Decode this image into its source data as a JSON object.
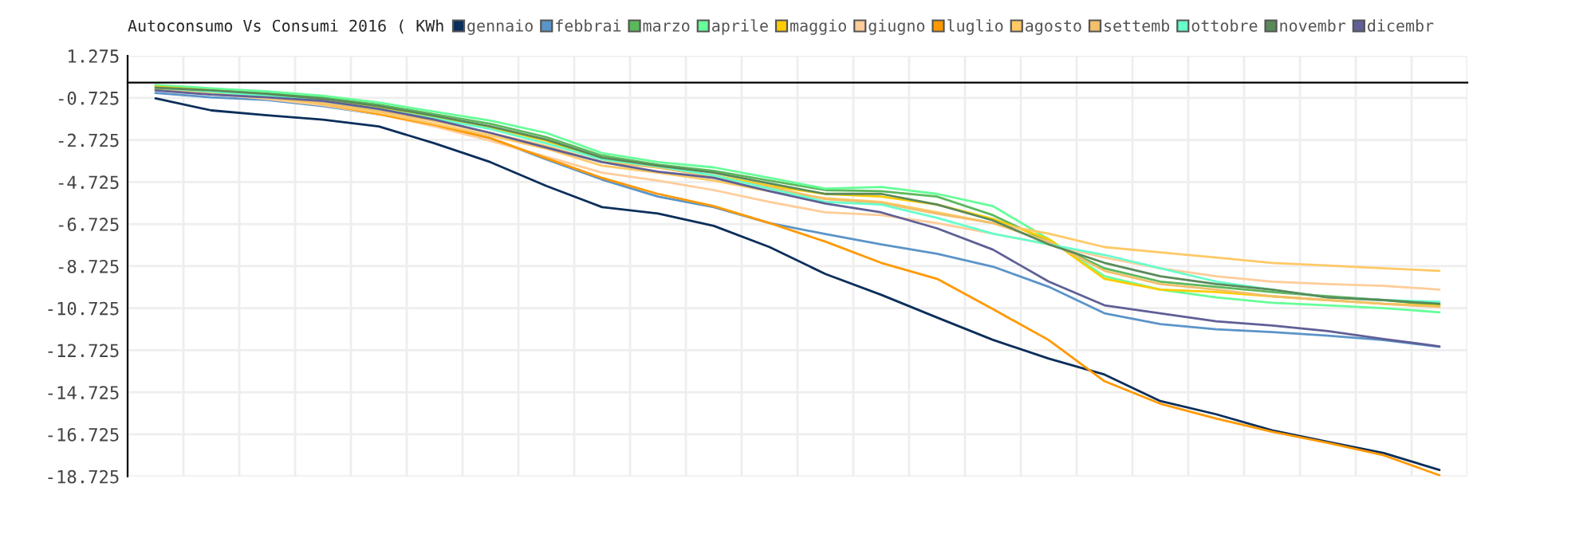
{
  "chart_data": {
    "type": "line",
    "title": "Autoconsumo Vs Consumi 2016 ( KWh",
    "categories": [
      null,
      null,
      null,
      null,
      null,
      null,
      null,
      null,
      null,
      null,
      null,
      null,
      null,
      null,
      null,
      null,
      null,
      null,
      null,
      null,
      null,
      null,
      null,
      null
    ],
    "ylim": [
      -18.725,
      1.275
    ],
    "yticks": [
      1.275,
      -0.725,
      -2.725,
      -4.725,
      -6.725,
      -8.725,
      -10.725,
      -12.725,
      -14.725,
      -16.725,
      -18.725
    ],
    "grid": true,
    "legend": "top",
    "tick_labels": "y",
    "series": [
      {
        "name": "gennaio",
        "color": "#0b2e5a",
        "values": [
          -0.75,
          -1.32,
          -1.55,
          -1.76,
          -2.08,
          -2.89,
          -3.78,
          -4.91,
          -5.92,
          -6.22,
          -6.81,
          -7.82,
          -9.1,
          -10.09,
          -11.17,
          -12.23,
          -13.12,
          -13.88,
          -15.14,
          -15.77,
          -16.53,
          -17.08,
          -17.61,
          -18.42
        ]
      },
      {
        "name": "febbrai",
        "color": "#5b94c8",
        "values": [
          -0.49,
          -0.7,
          -0.82,
          -1.12,
          -1.5,
          -2.01,
          -2.64,
          -3.65,
          -4.61,
          -5.42,
          -5.92,
          -6.68,
          -7.2,
          -7.69,
          -8.14,
          -8.75,
          -9.71,
          -10.97,
          -11.48,
          -11.73,
          -11.86,
          -12.03,
          -12.24,
          -12.56
        ]
      },
      {
        "name": "marzo",
        "color": "#5cb85c",
        "values": [
          -0.16,
          -0.32,
          -0.49,
          -0.7,
          -1.05,
          -1.5,
          -1.96,
          -2.59,
          -3.47,
          -3.9,
          -4.2,
          -4.66,
          -5.11,
          -5.16,
          -5.42,
          -6.3,
          -7.56,
          -8.83,
          -9.46,
          -9.71,
          -9.96,
          -10.16,
          -10.34,
          -10.59
        ]
      },
      {
        "name": "aprile",
        "color": "#66ff99",
        "values": [
          -0.11,
          -0.27,
          -0.42,
          -0.62,
          -0.95,
          -1.38,
          -1.81,
          -2.39,
          -3.35,
          -3.78,
          -4.03,
          -4.53,
          -5.04,
          -4.96,
          -5.29,
          -5.87,
          -7.44,
          -9.21,
          -9.84,
          -10.21,
          -10.47,
          -10.59,
          -10.72,
          -10.92
        ]
      },
      {
        "name": "maggio",
        "color": "#ffcc00",
        "values": [
          -0.19,
          -0.37,
          -0.57,
          -0.82,
          -1.17,
          -1.63,
          -2.13,
          -2.77,
          -3.65,
          -4.03,
          -4.41,
          -4.91,
          -5.29,
          -5.42,
          -5.8,
          -6.48,
          -7.44,
          -9.33,
          -9.84,
          -9.96,
          -10.16,
          -10.34,
          -10.52,
          -10.62
        ]
      },
      {
        "name": "giugno",
        "color": "#ffcc99",
        "values": [
          -0.32,
          -0.54,
          -0.77,
          -1.07,
          -1.5,
          -2.08,
          -2.77,
          -3.52,
          -4.28,
          -4.66,
          -5.11,
          -5.67,
          -6.17,
          -6.3,
          -6.68,
          -7.18,
          -7.69,
          -8.32,
          -8.83,
          -9.21,
          -9.46,
          -9.58,
          -9.66,
          -9.84
        ]
      },
      {
        "name": "luglio",
        "color": "#ff9900",
        "values": [
          -0.32,
          -0.49,
          -0.67,
          -1.0,
          -1.5,
          -2.01,
          -2.64,
          -3.6,
          -4.53,
          -5.29,
          -5.87,
          -6.68,
          -7.56,
          -8.57,
          -9.33,
          -10.77,
          -12.24,
          -14.2,
          -15.27,
          -15.97,
          -16.6,
          -17.13,
          -17.72,
          -18.67
        ]
      },
      {
        "name": "agosto",
        "color": "#ffc966",
        "values": [
          -0.32,
          -0.52,
          -0.72,
          -1.0,
          -1.43,
          -1.96,
          -2.51,
          -3.14,
          -3.95,
          -4.28,
          -4.66,
          -5.16,
          -5.49,
          -5.67,
          -6.17,
          -6.68,
          -7.18,
          -7.82,
          -8.07,
          -8.32,
          -8.57,
          -8.7,
          -8.83,
          -8.95
        ]
      },
      {
        "name": "settemb",
        "color": "#f2bf6b",
        "values": [
          -0.29,
          -0.49,
          -0.67,
          -0.95,
          -1.33,
          -1.83,
          -2.39,
          -3.02,
          -3.78,
          -4.03,
          -4.48,
          -4.96,
          -5.54,
          -5.72,
          -6.23,
          -6.68,
          -7.56,
          -8.95,
          -9.58,
          -9.84,
          -10.16,
          -10.34,
          -10.52,
          -10.67
        ]
      },
      {
        "name": "ottobre",
        "color": "#66ffcc",
        "values": [
          -0.24,
          -0.42,
          -0.62,
          -0.87,
          -1.25,
          -1.7,
          -2.21,
          -2.89,
          -3.65,
          -3.98,
          -4.41,
          -5.04,
          -5.67,
          -5.8,
          -6.43,
          -7.18,
          -7.69,
          -8.19,
          -8.83,
          -9.46,
          -9.84,
          -10.21,
          -10.34,
          -10.42
        ]
      },
      {
        "name": "novembr",
        "color": "#5a8a5a",
        "values": [
          -0.24,
          -0.37,
          -0.54,
          -0.77,
          -1.12,
          -1.58,
          -2.08,
          -2.71,
          -3.57,
          -3.95,
          -4.28,
          -4.79,
          -5.29,
          -5.29,
          -5.8,
          -6.55,
          -7.69,
          -8.57,
          -9.21,
          -9.58,
          -9.84,
          -10.21,
          -10.34,
          -10.52
        ]
      },
      {
        "name": "dicembr",
        "color": "#5f5f96",
        "values": [
          -0.37,
          -0.57,
          -0.7,
          -0.87,
          -1.25,
          -1.76,
          -2.39,
          -3.09,
          -3.78,
          -4.23,
          -4.53,
          -5.16,
          -5.75,
          -6.17,
          -6.93,
          -7.94,
          -9.46,
          -10.59,
          -10.97,
          -11.35,
          -11.55,
          -11.81,
          -12.19,
          -12.54
        ]
      }
    ]
  }
}
